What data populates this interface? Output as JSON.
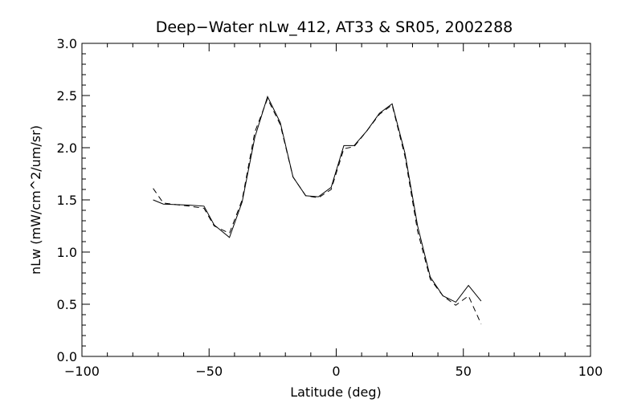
{
  "chart_data": {
    "type": "line",
    "title": "Deep−Water nLw_412, AT33 & SR05, 2002288",
    "xlabel": "Latitude (deg)",
    "ylabel": "nLw (mW/cm^2/um/sr)",
    "xlim": [
      -100,
      100
    ],
    "ylim": [
      0.0,
      3.0
    ],
    "xticks": [
      -100,
      -50,
      0,
      50,
      100
    ],
    "yticks": [
      0.0,
      0.5,
      1.0,
      1.5,
      2.0,
      2.5,
      3.0
    ],
    "xtick_labels": [
      "−100",
      "−50",
      "0",
      "50",
      "100"
    ],
    "ytick_labels": [
      "0.0",
      "0.5",
      "1.0",
      "1.5",
      "2.0",
      "2.5",
      "3.0"
    ],
    "grid": false,
    "legend": "none",
    "series": [
      {
        "style": "solid",
        "color": "#000000",
        "x": [
          -72,
          -68,
          -58,
          -52,
          -48,
          -42,
          -37,
          -32,
          -27,
          -22,
          -17,
          -12,
          -7,
          -2,
          3,
          7,
          12,
          17,
          22,
          27,
          32,
          37,
          42,
          47,
          52,
          57
        ],
        "y": [
          1.5,
          1.46,
          1.45,
          1.44,
          1.26,
          1.14,
          1.48,
          2.1,
          2.49,
          2.24,
          1.72,
          1.54,
          1.53,
          1.62,
          2.02,
          2.02,
          2.16,
          2.33,
          2.42,
          1.95,
          1.25,
          0.76,
          0.58,
          0.52,
          0.68,
          0.53
        ]
      },
      {
        "style": "dashed",
        "color": "#000000",
        "x": [
          -72,
          -68,
          -58,
          -52,
          -48,
          -42,
          -37,
          -32,
          -27,
          -22,
          -17,
          -12,
          -7,
          -2,
          3,
          7,
          12,
          17,
          22,
          27,
          32,
          37,
          42,
          47,
          52,
          57
        ],
        "y": [
          1.61,
          1.47,
          1.44,
          1.42,
          1.25,
          1.18,
          1.5,
          2.15,
          2.47,
          2.22,
          1.72,
          1.54,
          1.52,
          1.6,
          1.99,
          2.01,
          2.16,
          2.32,
          2.41,
          1.92,
          1.2,
          0.74,
          0.58,
          0.49,
          0.58,
          0.31
        ]
      }
    ]
  }
}
